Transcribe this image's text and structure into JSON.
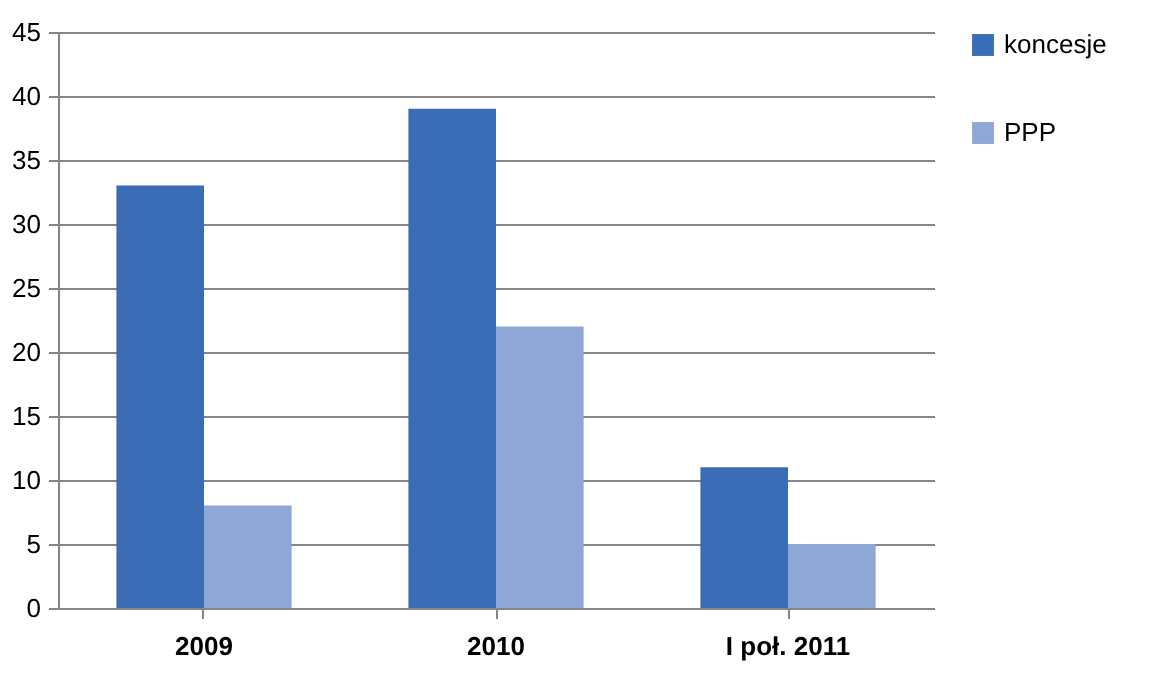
{
  "chart_data": {
    "type": "bar",
    "categories": [
      "2009",
      "2010",
      "I poł. 2011"
    ],
    "series": [
      {
        "name": "koncesje",
        "color": "#3a6db5",
        "values": [
          33,
          39,
          11
        ]
      },
      {
        "name": "PPP",
        "color": "#8ea7d6",
        "values": [
          8,
          22,
          5
        ]
      }
    ],
    "ylim": [
      0,
      45
    ],
    "yticks": [
      0,
      5,
      10,
      15,
      20,
      25,
      30,
      35,
      40,
      45
    ],
    "grid": "y",
    "legend": "right"
  }
}
